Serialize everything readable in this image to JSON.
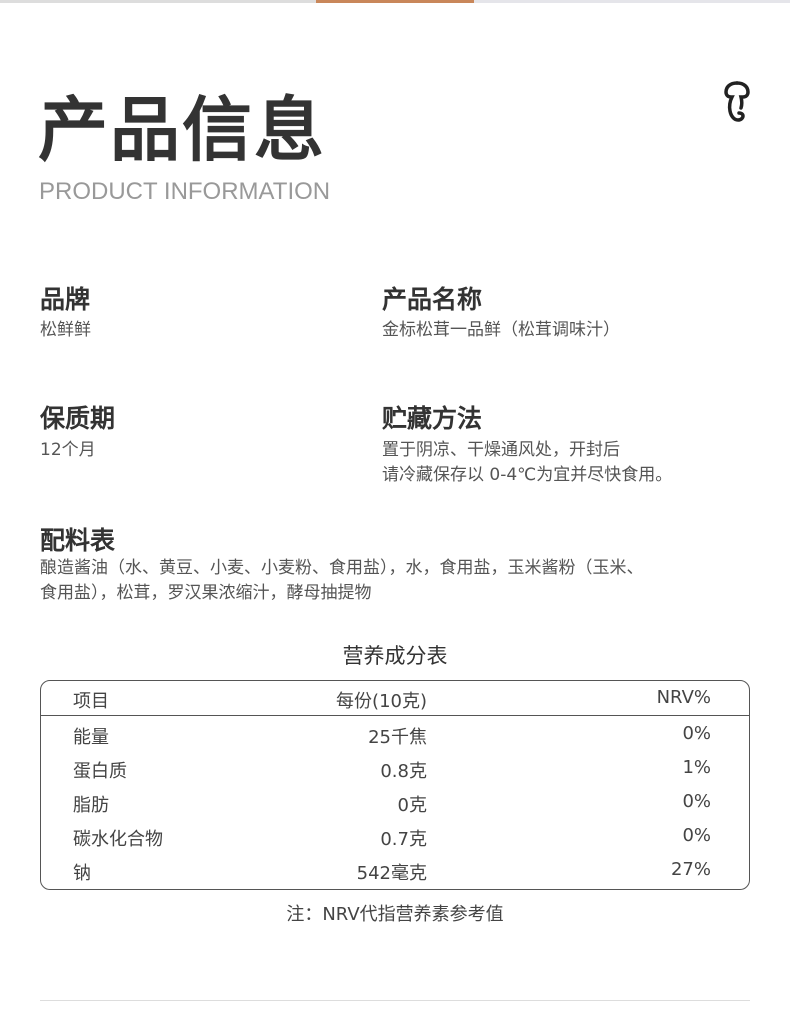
{
  "header": {
    "title": "产品信息",
    "subtitle": "PRODUCT INFORMATION",
    "logo_icon": "mushroom-outline-icon"
  },
  "info": [
    {
      "label": "品牌",
      "value": "松鲜鲜"
    },
    {
      "label": "产品名称",
      "value": "金标松茸一品鲜（松茸调味汁）"
    },
    {
      "label": "保质期",
      "value": "12个月"
    },
    {
      "label": "贮藏方法",
      "value_lines": [
        "置于阴凉、干燥通风处，开封后",
        "请冷藏保存以 0-4℃为宜并尽快食用。"
      ]
    }
  ],
  "ingredients": {
    "label": "配料表",
    "lines": [
      "酿造酱油（水、黄豆、小麦、小麦粉、食用盐），水，食用盐，玉米酱粉（玉米、",
      "食用盐），松茸，罗汉果浓缩汁，酵母抽提物"
    ]
  },
  "nutrition": {
    "title": "营养成分表",
    "headers": [
      "项目",
      "每份(10克)",
      "NRV%"
    ],
    "rows": [
      [
        "能量",
        "25千焦",
        "0%"
      ],
      [
        "蛋白质",
        "0.8克",
        "1%"
      ],
      [
        "脂肪",
        "0克",
        "0%"
      ],
      [
        "碳水化合物",
        "0.7克",
        "0%"
      ],
      [
        "钠",
        "542毫克",
        "27%"
      ]
    ],
    "note": "注：NRV代指营养素参考值"
  }
}
